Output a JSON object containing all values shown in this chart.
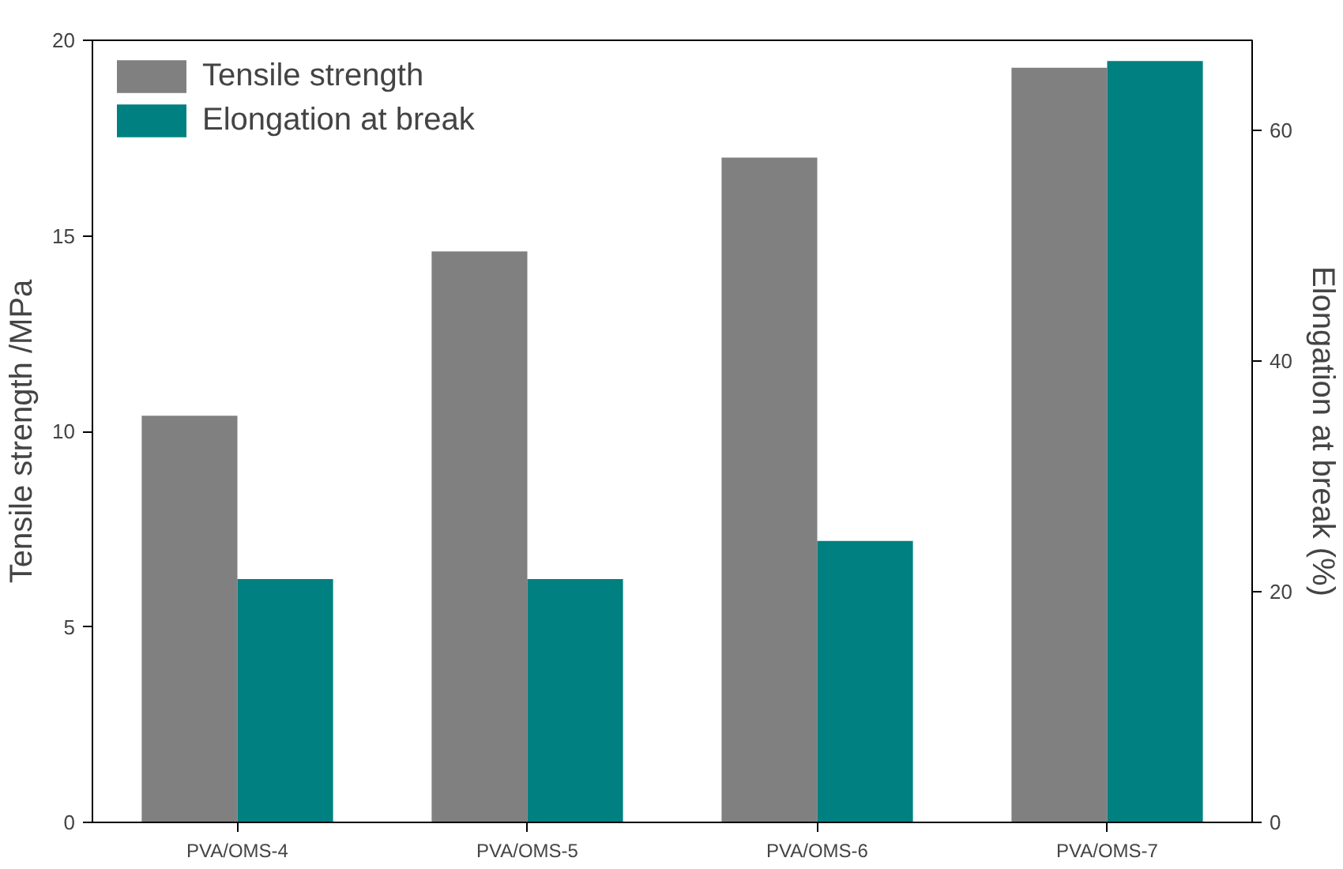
{
  "chart_data": {
    "type": "bar",
    "categories": [
      "PVA/OMS-4",
      "PVA/OMS-5",
      "PVA/OMS-6",
      "PVA/OMS-7"
    ],
    "ylabel": "Tensile strength /MPa",
    "y2label": "Elongation at break (%)",
    "series": [
      {
        "name": "Tensile strength",
        "color": "#808080",
        "values": [
          10.4,
          14.6,
          17.0,
          19.3
        ]
      },
      {
        "name": "Elongation at break",
        "color": "#008080",
        "values": [
          21.1,
          21.1,
          24.4,
          66.0
        ],
        "axis": "y2"
      }
    ],
    "ylim": [
      0,
      20
    ],
    "yticks": [
      0,
      5,
      10,
      15,
      20
    ],
    "y2lim": [
      0,
      67.8
    ],
    "y2ticks": [
      0,
      20,
      40,
      60
    ],
    "legend": "top left",
    "grid": false
  }
}
